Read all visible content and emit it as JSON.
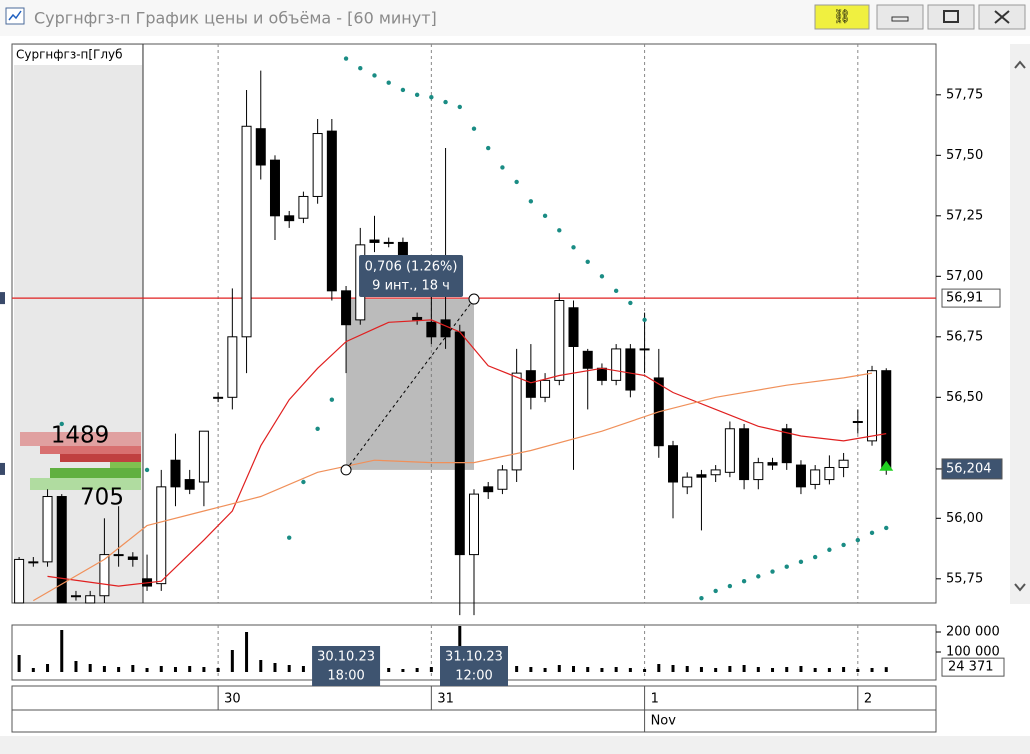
{
  "window": {
    "title": "Сургнфгз-п График цены и объёма - [60 минут]"
  },
  "chart_data": {
    "type": "candlestick",
    "instrument_label": "Сургнфгз-п[Глуб",
    "depth_labels": [
      "1489",
      "705"
    ],
    "candles": {
      "up_color": "#ffffff",
      "down_color": "#000000",
      "open": [
        55.65,
        55.82,
        55.82,
        56.09,
        55.68,
        55.65,
        55.68,
        55.85,
        55.84,
        55.75,
        55.73,
        56.24,
        56.16,
        56.15,
        56.5,
        56.5,
        56.75,
        57.61,
        57.48,
        57.25,
        57.24,
        57.33,
        57.6,
        56.94,
        56.82,
        57.15,
        57.14,
        57.14,
        56.83,
        56.81,
        56.82,
        56.77,
        55.85,
        56.13,
        56.12,
        56.2,
        56.61,
        56.5,
        56.57,
        56.87,
        56.69,
        56.62,
        56.57,
        56.7,
        56.7,
        56.58,
        56.3,
        56.13,
        56.18,
        56.18,
        56.19,
        56.37,
        56.16,
        56.23,
        56.37,
        56.22,
        56.14,
        56.16,
        56.21,
        56.4,
        56.32,
        56.61
      ],
      "high": [
        55.84,
        55.84,
        56.12,
        56.1,
        55.7,
        55.7,
        56.0,
        56.05,
        55.86,
        55.85,
        56.2,
        56.35,
        56.2,
        56.36,
        56.52,
        56.95,
        57.77,
        57.85,
        57.5,
        57.27,
        57.35,
        57.65,
        57.65,
        56.96,
        57.2,
        57.25,
        57.16,
        57.16,
        56.85,
        56.95,
        57.53,
        56.8,
        56.12,
        56.15,
        56.22,
        56.7,
        56.72,
        56.6,
        56.93,
        56.9,
        56.7,
        56.64,
        56.72,
        56.72,
        56.85,
        56.7,
        56.32,
        56.19,
        56.2,
        56.22,
        56.4,
        56.39,
        56.25,
        56.25,
        56.39,
        56.24,
        56.22,
        56.26,
        56.27,
        56.45,
        56.63,
        56.62
      ],
      "low": [
        55.65,
        55.8,
        55.8,
        55.65,
        55.66,
        55.65,
        55.65,
        55.8,
        55.8,
        55.7,
        55.7,
        56.05,
        56.1,
        56.05,
        56.48,
        56.45,
        56.6,
        57.4,
        57.15,
        57.2,
        57.22,
        57.3,
        56.9,
        56.6,
        56.8,
        57.1,
        57.12,
        57.05,
        56.8,
        56.72,
        56.7,
        55.6,
        55.6,
        56.08,
        56.1,
        56.15,
        56.45,
        56.48,
        56.55,
        56.2,
        56.45,
        56.55,
        56.55,
        56.5,
        56.6,
        56.25,
        56.0,
        56.1,
        55.95,
        56.15,
        56.17,
        56.12,
        56.12,
        56.2,
        56.2,
        56.1,
        56.12,
        56.14,
        56.17,
        56.35,
        56.3,
        56.18
      ],
      "close": [
        55.83,
        55.82,
        56.09,
        55.65,
        55.68,
        55.68,
        55.85,
        55.85,
        55.83,
        55.72,
        56.13,
        56.13,
        56.12,
        56.36,
        56.5,
        56.75,
        57.62,
        57.46,
        57.25,
        57.23,
        57.33,
        57.59,
        56.94,
        56.8,
        57.13,
        57.14,
        57.14,
        57.08,
        56.82,
        56.75,
        56.75,
        55.85,
        56.1,
        56.11,
        56.2,
        56.6,
        56.5,
        56.57,
        56.9,
        56.71,
        56.62,
        56.57,
        56.7,
        56.53,
        56.7,
        56.3,
        56.15,
        56.17,
        56.17,
        56.2,
        56.37,
        56.16,
        56.23,
        56.22,
        56.23,
        56.13,
        56.2,
        56.21,
        56.24,
        56.4,
        56.61,
        56.204
      ]
    },
    "lines": [
      {
        "color": "#e02020",
        "x": [
          2,
          7,
          10,
          13,
          15,
          17,
          19,
          21,
          23,
          26,
          29,
          31,
          33,
          36,
          38,
          41,
          44,
          46,
          49,
          52,
          55,
          58,
          61
        ],
        "values": [
          55.76,
          55.72,
          55.74,
          55.91,
          56.03,
          56.3,
          56.49,
          56.62,
          56.73,
          56.81,
          56.82,
          56.77,
          56.63,
          56.56,
          56.59,
          56.62,
          56.59,
          56.52,
          56.45,
          56.38,
          56.34,
          56.32,
          56.35
        ]
      },
      {
        "color": "#f0905a",
        "x": [
          1,
          6,
          9,
          13,
          17,
          21,
          25,
          29,
          32,
          36,
          41,
          45,
          49,
          54,
          58,
          60
        ],
        "values": [
          55.66,
          55.83,
          55.97,
          56.03,
          56.09,
          56.19,
          56.24,
          56.23,
          56.23,
          56.28,
          56.36,
          56.44,
          56.5,
          56.55,
          56.58,
          56.6
        ]
      }
    ],
    "sar": {
      "color": "#1a8c84",
      "x": [
        3,
        9,
        19,
        20,
        21,
        22,
        23,
        24,
        25,
        26,
        27,
        28,
        29,
        30,
        31,
        32,
        33,
        34,
        35,
        36,
        37,
        38,
        39,
        40,
        41,
        42,
        43,
        44,
        48,
        49,
        50,
        51,
        52,
        53,
        54,
        55,
        56,
        57,
        58,
        59,
        60,
        61
      ],
      "values": [
        56.39,
        56.2,
        55.92,
        56.15,
        56.37,
        56.49,
        57.9,
        57.86,
        57.83,
        57.8,
        57.77,
        57.75,
        57.74,
        57.72,
        57.7,
        57.61,
        57.53,
        57.45,
        57.39,
        57.31,
        57.25,
        57.19,
        57.12,
        57.06,
        57.0,
        56.94,
        56.89,
        56.82,
        55.67,
        55.7,
        55.72,
        55.74,
        55.76,
        55.78,
        55.8,
        55.82,
        55.84,
        55.87,
        55.89,
        55.91,
        55.94,
        55.96
      ]
    },
    "ylim": [
      55.65,
      57.96
    ],
    "yticks": [
      {
        "value": 57.75,
        "label": "57,75"
      },
      {
        "value": 57.5,
        "label": "57,50"
      },
      {
        "value": 57.25,
        "label": "57,25"
      },
      {
        "value": 57,
        "label": "57,00"
      },
      {
        "value": 56.75,
        "label": "56,75"
      },
      {
        "value": 56.5,
        "label": "56,50"
      },
      {
        "value": 56,
        "label": "56,00"
      },
      {
        "value": 55.75,
        "label": "55,75"
      }
    ],
    "price_line": {
      "value": 56.91,
      "label": "56,91",
      "color": "#e02020"
    },
    "last_price": {
      "value": 56.204,
      "label": "56,204"
    },
    "measure": {
      "x": [
        23,
        32
      ],
      "y": [
        56.2,
        56.906
      ],
      "labels": [
        "0,706 (1.26%)",
        "9 инт., 18 ч"
      ]
    },
    "xlim": [
      -0.5,
      64.5
    ],
    "xticks": [
      {
        "value": 14,
        "label": "30"
      },
      {
        "value": 29,
        "label": "31"
      },
      {
        "value": 44,
        "label": "1"
      },
      {
        "value": 59,
        "label": "2"
      }
    ],
    "month_ticks": [
      {
        "value": 44,
        "label": "Nov"
      }
    ],
    "crosshair_labels": [
      {
        "x": 23,
        "lines": [
          "30.10.23",
          "18:00"
        ]
      },
      {
        "x": 32,
        "lines": [
          "31.10.23",
          "12:00"
        ]
      }
    ],
    "volume": {
      "values": [
        85000,
        20000,
        40000,
        210000,
        55000,
        40000,
        30000,
        25000,
        35000,
        20000,
        30000,
        25000,
        30000,
        25000,
        20000,
        110000,
        200000,
        60000,
        45000,
        35000,
        30000,
        25000,
        30000,
        35000,
        25000,
        20000,
        20000,
        15000,
        20000,
        25000,
        40000,
        230000,
        80000,
        35000,
        30000,
        30000,
        25000,
        20000,
        35000,
        30000,
        25000,
        20000,
        25000,
        20000,
        15000,
        40000,
        35000,
        30000,
        25000,
        20000,
        30000,
        35000,
        25000,
        20000,
        25000,
        30000,
        20000,
        20000,
        25000,
        15000,
        20000,
        24371
      ],
      "color": "#000000",
      "ylim": [
        0,
        235000
      ],
      "yticks": [
        {
          "value": 200000,
          "label": "200 000"
        },
        {
          "value": 100000,
          "label": "100 000"
        }
      ],
      "last": {
        "value": 24371,
        "label": "24 371"
      }
    }
  }
}
